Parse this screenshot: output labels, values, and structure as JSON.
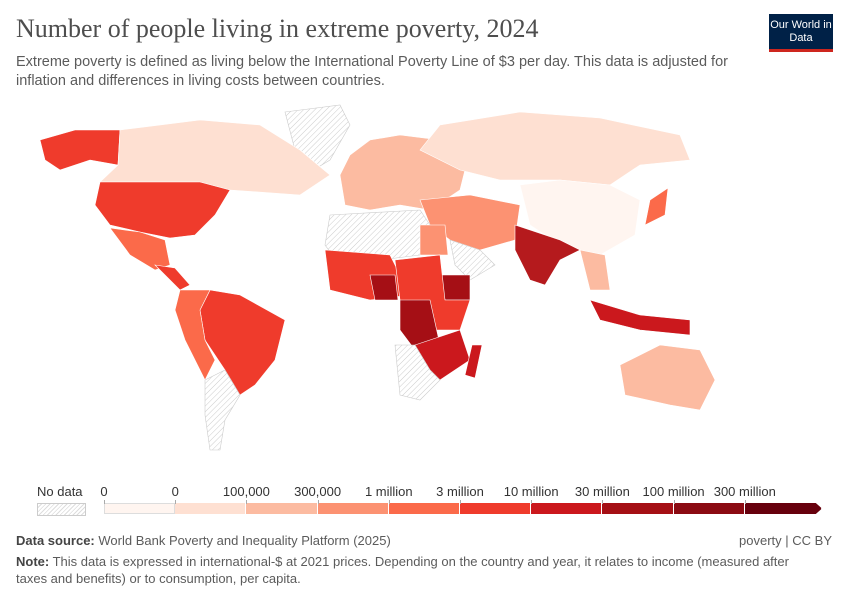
{
  "header": {
    "title": "Number of people living in extreme poverty, 2024",
    "subtitle": "Extreme poverty is defined as living below the International Poverty Line of $3 per day. This data is adjusted for inflation and differences in living costs between countries.",
    "logo": "Our World in Data"
  },
  "legend": {
    "no_data_label": "No data",
    "labels": [
      "0",
      "0",
      "100,000",
      "300,000",
      "1 million",
      "3 million",
      "10 million",
      "30 million",
      "100 million",
      "300 million"
    ],
    "colors": [
      "#fff5f0",
      "#fee0d2",
      "#fcbba1",
      "#fc9272",
      "#fb6a4a",
      "#ef3b2c",
      "#cb181d",
      "#a50f15",
      "#8b0a12",
      "#67000d"
    ]
  },
  "footer": {
    "source_label": "Data source:",
    "source": "World Bank Poverty and Inequality Platform (2025)",
    "license": "poverty | CC BY",
    "note_label": "Note:",
    "note": "This data is expressed in international-$ at 2021 prices. Depending on the country and year, it relates to income (measured after taxes and benefits) or to consumption, per capita."
  }
}
